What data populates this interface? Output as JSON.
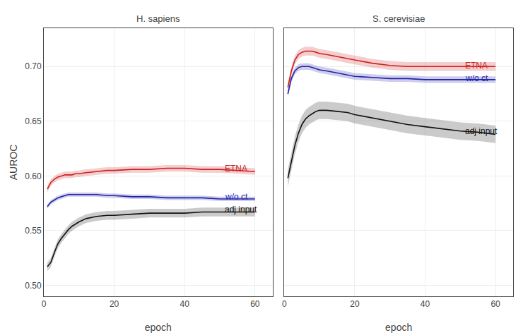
{
  "chart_data": [
    {
      "type": "line",
      "title": "H. sapiens",
      "xlabel": "epoch",
      "ylabel": "AUROC",
      "x": [
        1,
        2,
        3,
        4,
        5,
        6,
        7,
        8,
        9,
        10,
        12,
        15,
        18,
        20,
        25,
        30,
        35,
        40,
        45,
        50,
        55,
        60
      ],
      "series": [
        {
          "name": "ETNA",
          "color": "#cc2222",
          "values": [
            0.588,
            0.594,
            0.597,
            0.599,
            0.6,
            0.601,
            0.601,
            0.601,
            0.602,
            0.602,
            0.603,
            0.604,
            0.605,
            0.605,
            0.606,
            0.606,
            0.607,
            0.607,
            0.606,
            0.606,
            0.605,
            0.604
          ],
          "y_lo": [
            0.585,
            0.591,
            0.594,
            0.596,
            0.597,
            0.598,
            0.598,
            0.598,
            0.599,
            0.599,
            0.6,
            0.601,
            0.602,
            0.602,
            0.603,
            0.603,
            0.604,
            0.604,
            0.603,
            0.603,
            0.602,
            0.601
          ],
          "y_hi": [
            0.591,
            0.597,
            0.6,
            0.602,
            0.603,
            0.604,
            0.604,
            0.604,
            0.605,
            0.605,
            0.606,
            0.607,
            0.608,
            0.608,
            0.609,
            0.609,
            0.61,
            0.61,
            0.609,
            0.609,
            0.608,
            0.607
          ]
        },
        {
          "name": "w/o ct",
          "color": "#2222aa",
          "values": [
            0.572,
            0.576,
            0.578,
            0.58,
            0.581,
            0.582,
            0.583,
            0.583,
            0.583,
            0.583,
            0.583,
            0.583,
            0.582,
            0.582,
            0.581,
            0.581,
            0.58,
            0.58,
            0.58,
            0.579,
            0.579,
            0.579
          ],
          "y_lo": [
            0.57,
            0.574,
            0.576,
            0.578,
            0.579,
            0.58,
            0.581,
            0.581,
            0.581,
            0.581,
            0.581,
            0.581,
            0.58,
            0.58,
            0.579,
            0.579,
            0.578,
            0.578,
            0.578,
            0.577,
            0.577,
            0.577
          ],
          "y_hi": [
            0.574,
            0.578,
            0.58,
            0.582,
            0.583,
            0.584,
            0.585,
            0.585,
            0.585,
            0.585,
            0.585,
            0.585,
            0.584,
            0.584,
            0.583,
            0.583,
            0.582,
            0.582,
            0.582,
            0.581,
            0.581,
            0.581
          ]
        },
        {
          "name": "adj input",
          "color": "#111111",
          "values": [
            0.517,
            0.521,
            0.53,
            0.538,
            0.543,
            0.547,
            0.551,
            0.554,
            0.556,
            0.558,
            0.561,
            0.563,
            0.564,
            0.564,
            0.565,
            0.566,
            0.566,
            0.566,
            0.567,
            0.567,
            0.567,
            0.567
          ],
          "y_lo": [
            0.513,
            0.517,
            0.526,
            0.534,
            0.539,
            0.543,
            0.547,
            0.55,
            0.552,
            0.554,
            0.557,
            0.559,
            0.56,
            0.56,
            0.561,
            0.562,
            0.562,
            0.562,
            0.563,
            0.563,
            0.563,
            0.563
          ],
          "y_hi": [
            0.521,
            0.525,
            0.534,
            0.542,
            0.547,
            0.551,
            0.555,
            0.558,
            0.56,
            0.562,
            0.565,
            0.567,
            0.568,
            0.568,
            0.569,
            0.57,
            0.57,
            0.57,
            0.571,
            0.571,
            0.571,
            0.571
          ]
        }
      ],
      "annotations": [
        {
          "text": "ETNA",
          "x": 51,
          "y": 0.607
        },
        {
          "text": "w/o ct",
          "x": 51,
          "y": 0.581
        },
        {
          "text": "adj input",
          "x": 51,
          "y": 0.569
        }
      ],
      "xlim": [
        0,
        65
      ],
      "ylim": [
        0.49,
        0.735
      ],
      "xticks": [
        0,
        20,
        40,
        60
      ],
      "yticks": [
        {
          "value": 0.5,
          "label": "0.50"
        },
        0.55,
        {
          "value": 0.6,
          "label": "0.60"
        },
        0.65,
        {
          "value": 0.7,
          "label": "0.70"
        }
      ],
      "grid": true
    },
    {
      "type": "line",
      "title": "S. cerevisiae",
      "xlabel": "epoch",
      "x": [
        1,
        2,
        3,
        4,
        5,
        6,
        7,
        8,
        9,
        10,
        12,
        15,
        18,
        20,
        25,
        30,
        35,
        40,
        45,
        50,
        55,
        60
      ],
      "series": [
        {
          "name": "ETNA",
          "color": "#cc2222",
          "values": [
            0.681,
            0.696,
            0.706,
            0.711,
            0.713,
            0.714,
            0.714,
            0.714,
            0.713,
            0.712,
            0.711,
            0.709,
            0.707,
            0.706,
            0.703,
            0.701,
            0.7,
            0.7,
            0.7,
            0.7,
            0.7,
            0.7
          ],
          "y_lo": [
            0.677,
            0.692,
            0.702,
            0.707,
            0.709,
            0.71,
            0.71,
            0.71,
            0.709,
            0.708,
            0.707,
            0.705,
            0.703,
            0.702,
            0.699,
            0.697,
            0.696,
            0.696,
            0.696,
            0.696,
            0.696,
            0.696
          ],
          "y_hi": [
            0.685,
            0.7,
            0.71,
            0.715,
            0.717,
            0.718,
            0.718,
            0.718,
            0.717,
            0.716,
            0.715,
            0.713,
            0.711,
            0.71,
            0.707,
            0.705,
            0.704,
            0.704,
            0.704,
            0.704,
            0.704,
            0.704
          ]
        },
        {
          "name": "w/o ct",
          "color": "#2222aa",
          "values": [
            0.675,
            0.689,
            0.696,
            0.699,
            0.7,
            0.7,
            0.7,
            0.699,
            0.698,
            0.697,
            0.696,
            0.694,
            0.692,
            0.691,
            0.69,
            0.689,
            0.689,
            0.688,
            0.688,
            0.688,
            0.688,
            0.688
          ],
          "y_lo": [
            0.672,
            0.686,
            0.693,
            0.696,
            0.697,
            0.697,
            0.697,
            0.696,
            0.695,
            0.694,
            0.693,
            0.691,
            0.689,
            0.688,
            0.687,
            0.686,
            0.686,
            0.685,
            0.685,
            0.685,
            0.685,
            0.685
          ],
          "y_hi": [
            0.678,
            0.692,
            0.699,
            0.702,
            0.703,
            0.703,
            0.703,
            0.702,
            0.701,
            0.7,
            0.699,
            0.697,
            0.695,
            0.694,
            0.693,
            0.692,
            0.692,
            0.691,
            0.691,
            0.691,
            0.691,
            0.691
          ]
        },
        {
          "name": "adj input",
          "color": "#111111",
          "values": [
            0.598,
            0.614,
            0.628,
            0.639,
            0.647,
            0.652,
            0.655,
            0.657,
            0.659,
            0.66,
            0.66,
            0.659,
            0.658,
            0.656,
            0.653,
            0.65,
            0.647,
            0.645,
            0.643,
            0.641,
            0.64,
            0.638
          ],
          "y_lo": [
            0.59,
            0.606,
            0.62,
            0.631,
            0.639,
            0.644,
            0.647,
            0.649,
            0.651,
            0.652,
            0.652,
            0.651,
            0.65,
            0.648,
            0.645,
            0.642,
            0.639,
            0.637,
            0.635,
            0.633,
            0.632,
            0.63
          ],
          "y_hi": [
            0.606,
            0.622,
            0.636,
            0.647,
            0.655,
            0.66,
            0.663,
            0.665,
            0.667,
            0.668,
            0.668,
            0.667,
            0.666,
            0.664,
            0.661,
            0.658,
            0.655,
            0.653,
            0.651,
            0.649,
            0.648,
            0.646
          ]
        }
      ],
      "annotations": [
        {
          "text": "ETNA",
          "x": 51,
          "y": 0.701
        },
        {
          "text": "w/o ct",
          "x": 51,
          "y": 0.689
        },
        {
          "text": "adj input",
          "x": 51,
          "y": 0.641
        }
      ],
      "xlim": [
        0,
        65
      ],
      "ylim": [
        0.49,
        0.735
      ],
      "xticks": [
        0,
        20,
        40,
        60
      ],
      "yticks": [
        {
          "value": 0.5,
          "label": "0.50"
        },
        0.55,
        {
          "value": 0.6,
          "label": "0.60"
        },
        0.65,
        {
          "value": 0.7,
          "label": "0.70"
        }
      ],
      "grid": true,
      "tick_labels": "x"
    }
  ]
}
